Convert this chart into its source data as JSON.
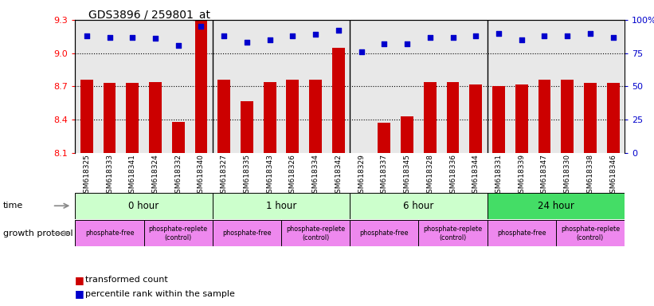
{
  "title": "GDS3896 / 259801_at",
  "samples": [
    "GSM618325",
    "GSM618333",
    "GSM618341",
    "GSM618324",
    "GSM618332",
    "GSM618340",
    "GSM618327",
    "GSM618335",
    "GSM618343",
    "GSM618326",
    "GSM618334",
    "GSM618342",
    "GSM618329",
    "GSM618337",
    "GSM618345",
    "GSM618328",
    "GSM618336",
    "GSM618344",
    "GSM618331",
    "GSM618339",
    "GSM618347",
    "GSM618330",
    "GSM618338",
    "GSM618346"
  ],
  "transformed_counts": [
    8.76,
    8.73,
    8.73,
    8.74,
    8.38,
    9.43,
    8.76,
    8.57,
    8.74,
    8.76,
    8.76,
    9.05,
    8.1,
    8.37,
    8.43,
    8.74,
    8.74,
    8.72,
    8.7,
    8.72,
    8.76,
    8.76,
    8.73,
    8.73
  ],
  "percentile_ranks": [
    88,
    87,
    87,
    86,
    81,
    95,
    88,
    83,
    85,
    88,
    89,
    92,
    76,
    82,
    82,
    87,
    87,
    88,
    90,
    85,
    88,
    88,
    90,
    87
  ],
  "ylim_left": [
    8.1,
    9.3
  ],
  "ylim_right": [
    0,
    100
  ],
  "yticks_left": [
    8.1,
    8.4,
    8.7,
    9.0,
    9.3
  ],
  "yticks_right": [
    0,
    25,
    50,
    75,
    100
  ],
  "ytick_labels_right": [
    "0",
    "25",
    "50",
    "75",
    "100%"
  ],
  "bar_color": "#cc0000",
  "dot_color": "#0000cc",
  "time_labels": [
    "0 hour",
    "1 hour",
    "6 hour",
    "24 hour"
  ],
  "time_starts": [
    0,
    6,
    12,
    18
  ],
  "time_ends": [
    6,
    12,
    18,
    24
  ],
  "time_colors": [
    "#ccffcc",
    "#ccffcc",
    "#ccffcc",
    "#44dd66"
  ],
  "prot_labels": [
    "phosphate-free",
    "phosphate-replete\n(control)",
    "phosphate-free",
    "phosphate-replete\n(control)",
    "phosphate-free",
    "phosphate-replete\n(control)",
    "phosphate-free",
    "phosphate-replete\n(control)"
  ],
  "prot_starts": [
    0,
    3,
    6,
    9,
    12,
    15,
    18,
    21
  ],
  "prot_ends": [
    3,
    6,
    9,
    12,
    15,
    18,
    21,
    24
  ],
  "prot_color": "#ee88ee",
  "grid_lines": [
    8.4,
    8.7,
    9.0
  ],
  "legend_bar_label": "transformed count",
  "legend_dot_label": "percentile rank within the sample",
  "group_boundaries": [
    6,
    12,
    18
  ]
}
